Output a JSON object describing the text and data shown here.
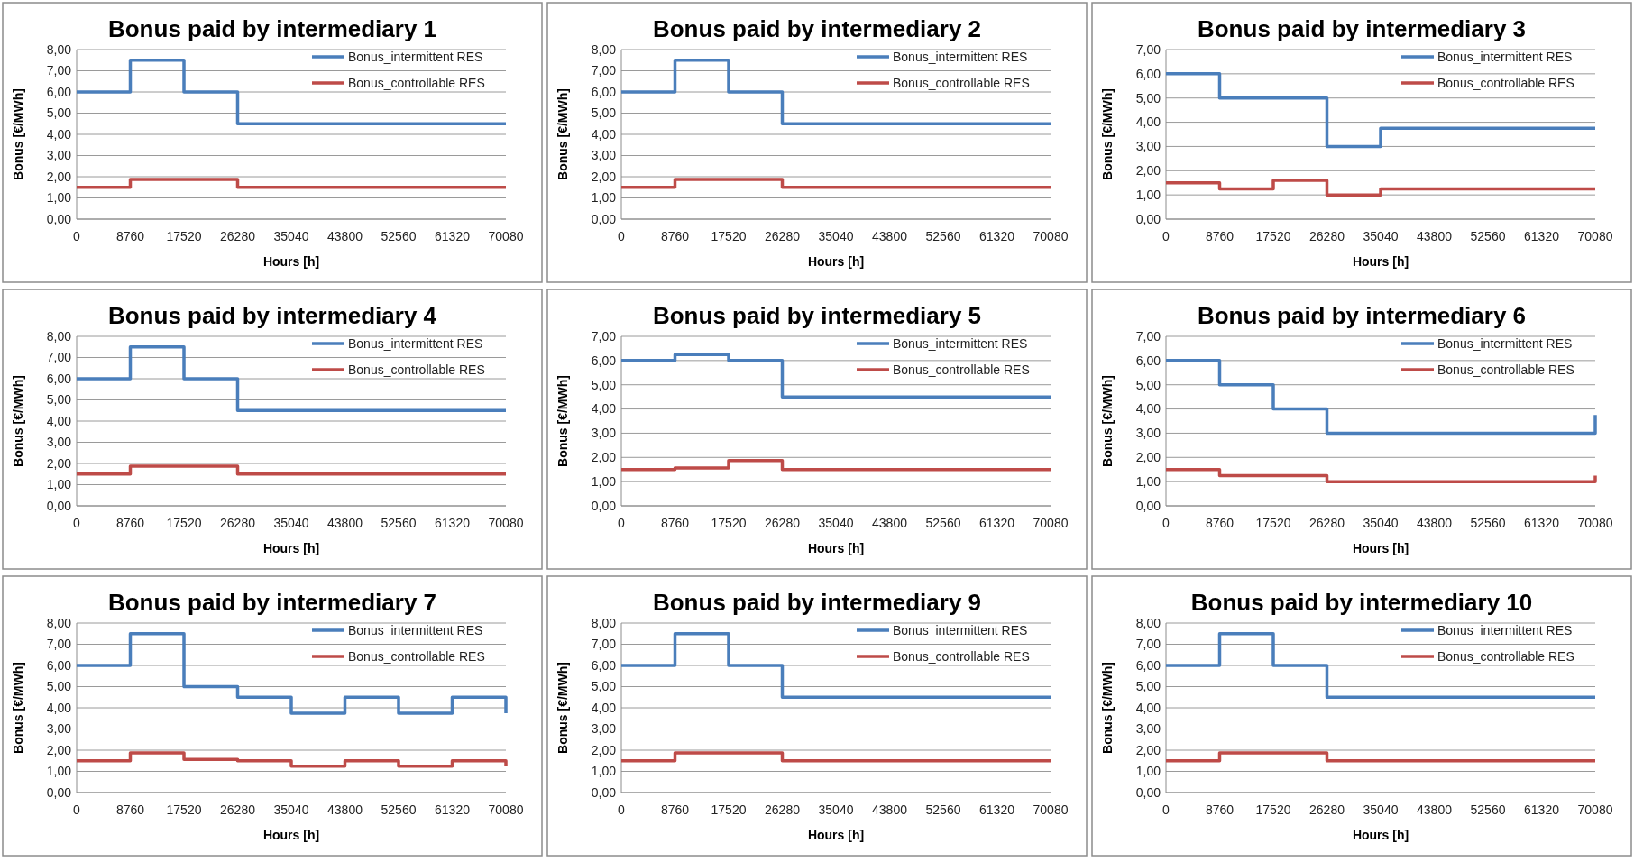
{
  "chart_data": [
    {
      "type": "step",
      "title": "Bonus paid by intermediary 1",
      "xlabel": "Hours [h]",
      "ylabel": "Bonus [€/MWh]",
      "x": [
        0,
        8760,
        17520,
        26280,
        35040,
        43800,
        52560,
        61320,
        70080
      ],
      "xlim": [
        0,
        70080
      ],
      "xticks": [
        0,
        8760,
        17520,
        26280,
        35040,
        43800,
        52560,
        61320,
        70080
      ],
      "ylim": [
        0,
        8
      ],
      "yticks": [
        {
          "value": 0,
          "label": "0,00"
        },
        {
          "value": 1,
          "label": "1,00"
        },
        {
          "value": 2,
          "label": "2,00"
        },
        {
          "value": 3,
          "label": "3,00"
        },
        {
          "value": 4,
          "label": "4,00"
        },
        {
          "value": 5,
          "label": "5,00"
        },
        {
          "value": 6,
          "label": "6,00"
        },
        {
          "value": 7,
          "label": "7,00"
        },
        {
          "value": 8,
          "label": "8,00"
        }
      ],
      "grid": "y",
      "legend": "top right",
      "series": [
        {
          "name": "Bonus_intermittent RES",
          "color": "#4a7ebb",
          "values": [
            6,
            7.5,
            6,
            4.5,
            4.5,
            4.5,
            4.5,
            4.5,
            4.5
          ]
        },
        {
          "name": "Bonus_controllable RES",
          "color": "#be4b48",
          "values": [
            1.5,
            1.875,
            1.875,
            1.5,
            1.5,
            1.5,
            1.5,
            1.5,
            1.5
          ]
        }
      ]
    },
    {
      "type": "step",
      "title": "Bonus paid by intermediary 2",
      "xlabel": "Hours [h]",
      "ylabel": "Bonus [€/MWh]",
      "x": [
        0,
        8760,
        17520,
        26280,
        35040,
        43800,
        52560,
        61320,
        70080
      ],
      "xlim": [
        0,
        70080
      ],
      "xticks": [
        0,
        8760,
        17520,
        26280,
        35040,
        43800,
        52560,
        61320,
        70080
      ],
      "ylim": [
        0,
        8
      ],
      "yticks": [
        {
          "value": 0,
          "label": "0,00"
        },
        {
          "value": 1,
          "label": "1,00"
        },
        {
          "value": 2,
          "label": "2,00"
        },
        {
          "value": 3,
          "label": "3,00"
        },
        {
          "value": 4,
          "label": "4,00"
        },
        {
          "value": 5,
          "label": "5,00"
        },
        {
          "value": 6,
          "label": "6,00"
        },
        {
          "value": 7,
          "label": "7,00"
        },
        {
          "value": 8,
          "label": "8,00"
        }
      ],
      "grid": "y",
      "legend": "top right",
      "series": [
        {
          "name": "Bonus_intermittent RES",
          "color": "#4a7ebb",
          "values": [
            6,
            7.5,
            6,
            4.5,
            4.5,
            4.5,
            4.5,
            4.5,
            4.5
          ]
        },
        {
          "name": "Bonus_controllable RES",
          "color": "#be4b48",
          "values": [
            1.5,
            1.875,
            1.875,
            1.5,
            1.5,
            1.5,
            1.5,
            1.5,
            1.5
          ]
        }
      ]
    },
    {
      "type": "step",
      "title": "Bonus paid by intermediary 3",
      "xlabel": "Hours [h]",
      "ylabel": "Bonus [€/MWh]",
      "x": [
        0,
        8760,
        17520,
        26280,
        35040,
        43800,
        52560,
        61320,
        70080
      ],
      "xlim": [
        0,
        70080
      ],
      "xticks": [
        0,
        8760,
        17520,
        26280,
        35040,
        43800,
        52560,
        61320,
        70080
      ],
      "ylim": [
        0,
        7
      ],
      "yticks": [
        {
          "value": 0,
          "label": "0,00"
        },
        {
          "value": 1,
          "label": "1,00"
        },
        {
          "value": 2,
          "label": "2,00"
        },
        {
          "value": 3,
          "label": "3,00"
        },
        {
          "value": 4,
          "label": "4,00"
        },
        {
          "value": 5,
          "label": "5,00"
        },
        {
          "value": 6,
          "label": "6,00"
        },
        {
          "value": 7,
          "label": "7,00"
        }
      ],
      "grid": "y",
      "legend": "top right",
      "series": [
        {
          "name": "Bonus_intermittent RES",
          "color": "#4a7ebb",
          "values": [
            6,
            5,
            5,
            3,
            3.75,
            3.75,
            3.75,
            3.75,
            3.75
          ]
        },
        {
          "name": "Bonus_controllable RES",
          "color": "#be4b48",
          "values": [
            1.5,
            1.25,
            1.6,
            1,
            1.25,
            1.25,
            1.25,
            1.25,
            1.25
          ]
        }
      ]
    },
    {
      "type": "step",
      "title": "Bonus paid by intermediary 4",
      "xlabel": "Hours [h]",
      "ylabel": "Bonus [€/MWh]",
      "x": [
        0,
        8760,
        17520,
        26280,
        35040,
        43800,
        52560,
        61320,
        70080
      ],
      "xlim": [
        0,
        70080
      ],
      "xticks": [
        0,
        8760,
        17520,
        26280,
        35040,
        43800,
        52560,
        61320,
        70080
      ],
      "ylim": [
        0,
        8
      ],
      "yticks": [
        {
          "value": 0,
          "label": "0,00"
        },
        {
          "value": 1,
          "label": "1,00"
        },
        {
          "value": 2,
          "label": "2,00"
        },
        {
          "value": 3,
          "label": "3,00"
        },
        {
          "value": 4,
          "label": "4,00"
        },
        {
          "value": 5,
          "label": "5,00"
        },
        {
          "value": 6,
          "label": "6,00"
        },
        {
          "value": 7,
          "label": "7,00"
        },
        {
          "value": 8,
          "label": "8,00"
        }
      ],
      "grid": "y",
      "legend": "top right",
      "series": [
        {
          "name": "Bonus_intermittent RES",
          "color": "#4a7ebb",
          "values": [
            6,
            7.5,
            6,
            4.5,
            4.5,
            4.5,
            4.5,
            4.5,
            4.5
          ]
        },
        {
          "name": "Bonus_controllable RES",
          "color": "#be4b48",
          "values": [
            1.5,
            1.875,
            1.875,
            1.5,
            1.5,
            1.5,
            1.5,
            1.5,
            1.5
          ]
        }
      ]
    },
    {
      "type": "step",
      "title": "Bonus paid by intermediary 5",
      "xlabel": "Hours [h]",
      "ylabel": "Bonus [€/MWh]",
      "x": [
        0,
        8760,
        17520,
        26280,
        35040,
        43800,
        52560,
        61320,
        70080
      ],
      "xlim": [
        0,
        70080
      ],
      "xticks": [
        0,
        8760,
        17520,
        26280,
        35040,
        43800,
        52560,
        61320,
        70080
      ],
      "ylim": [
        0,
        7
      ],
      "yticks": [
        {
          "value": 0,
          "label": "0,00"
        },
        {
          "value": 1,
          "label": "1,00"
        },
        {
          "value": 2,
          "label": "2,00"
        },
        {
          "value": 3,
          "label": "3,00"
        },
        {
          "value": 4,
          "label": "4,00"
        },
        {
          "value": 5,
          "label": "5,00"
        },
        {
          "value": 6,
          "label": "6,00"
        },
        {
          "value": 7,
          "label": "7,00"
        }
      ],
      "grid": "y",
      "legend": "top right",
      "series": [
        {
          "name": "Bonus_intermittent RES",
          "color": "#4a7ebb",
          "values": [
            6,
            6.25,
            6,
            4.5,
            4.5,
            4.5,
            4.5,
            4.5,
            4.5
          ]
        },
        {
          "name": "Bonus_controllable RES",
          "color": "#be4b48",
          "values": [
            1.5,
            1.56,
            1.875,
            1.5,
            1.5,
            1.5,
            1.5,
            1.5,
            1.5
          ]
        }
      ]
    },
    {
      "type": "step",
      "title": "Bonus paid by intermediary 6",
      "xlabel": "Hours [h]",
      "ylabel": "Bonus [€/MWh]",
      "x": [
        0,
        8760,
        17520,
        26280,
        35040,
        43800,
        52560,
        61320,
        70080
      ],
      "xlim": [
        0,
        70080
      ],
      "xticks": [
        0,
        8760,
        17520,
        26280,
        35040,
        43800,
        52560,
        61320,
        70080
      ],
      "ylim": [
        0,
        7
      ],
      "yticks": [
        {
          "value": 0,
          "label": "0,00"
        },
        {
          "value": 1,
          "label": "1,00"
        },
        {
          "value": 2,
          "label": "2,00"
        },
        {
          "value": 3,
          "label": "3,00"
        },
        {
          "value": 4,
          "label": "4,00"
        },
        {
          "value": 5,
          "label": "5,00"
        },
        {
          "value": 6,
          "label": "6,00"
        },
        {
          "value": 7,
          "label": "7,00"
        }
      ],
      "grid": "y",
      "legend": "top right",
      "series": [
        {
          "name": "Bonus_intermittent RES",
          "color": "#4a7ebb",
          "values": [
            6,
            5,
            4,
            3,
            3,
            3,
            3,
            3,
            3.75
          ]
        },
        {
          "name": "Bonus_controllable RES",
          "color": "#be4b48",
          "values": [
            1.5,
            1.25,
            1.25,
            1,
            1,
            1,
            1,
            1,
            1.25
          ]
        }
      ]
    },
    {
      "type": "step",
      "title": "Bonus paid by intermediary 7",
      "xlabel": "Hours [h]",
      "ylabel": "Bonus [€/MWh]",
      "x": [
        0,
        8760,
        17520,
        26280,
        35040,
        43800,
        52560,
        61320,
        70080
      ],
      "xlim": [
        0,
        70080
      ],
      "xticks": [
        0,
        8760,
        17520,
        26280,
        35040,
        43800,
        52560,
        61320,
        70080
      ],
      "ylim": [
        0,
        8
      ],
      "yticks": [
        {
          "value": 0,
          "label": "0,00"
        },
        {
          "value": 1,
          "label": "1,00"
        },
        {
          "value": 2,
          "label": "2,00"
        },
        {
          "value": 3,
          "label": "3,00"
        },
        {
          "value": 4,
          "label": "4,00"
        },
        {
          "value": 5,
          "label": "5,00"
        },
        {
          "value": 6,
          "label": "6,00"
        },
        {
          "value": 7,
          "label": "7,00"
        },
        {
          "value": 8,
          "label": "8,00"
        }
      ],
      "grid": "y",
      "legend": "top right",
      "series": [
        {
          "name": "Bonus_intermittent RES",
          "color": "#4a7ebb",
          "values": [
            6,
            7.5,
            5,
            4.5,
            3.75,
            4.5,
            3.75,
            4.5,
            3.75
          ]
        },
        {
          "name": "Bonus_controllable RES",
          "color": "#be4b48",
          "values": [
            1.5,
            1.875,
            1.56,
            1.5,
            1.25,
            1.5,
            1.25,
            1.5,
            1.25
          ]
        }
      ]
    },
    {
      "type": "step",
      "title": "Bonus paid by intermediary 9",
      "xlabel": "Hours [h]",
      "ylabel": "Bonus [€/MWh]",
      "x": [
        0,
        8760,
        17520,
        26280,
        35040,
        43800,
        52560,
        61320,
        70080
      ],
      "xlim": [
        0,
        70080
      ],
      "xticks": [
        0,
        8760,
        17520,
        26280,
        35040,
        43800,
        52560,
        61320,
        70080
      ],
      "ylim": [
        0,
        8
      ],
      "yticks": [
        {
          "value": 0,
          "label": "0,00"
        },
        {
          "value": 1,
          "label": "1,00"
        },
        {
          "value": 2,
          "label": "2,00"
        },
        {
          "value": 3,
          "label": "3,00"
        },
        {
          "value": 4,
          "label": "4,00"
        },
        {
          "value": 5,
          "label": "5,00"
        },
        {
          "value": 6,
          "label": "6,00"
        },
        {
          "value": 7,
          "label": "7,00"
        },
        {
          "value": 8,
          "label": "8,00"
        }
      ],
      "grid": "y",
      "legend": "top right",
      "series": [
        {
          "name": "Bonus_intermittent RES",
          "color": "#4a7ebb",
          "values": [
            6,
            7.5,
            6,
            4.5,
            4.5,
            4.5,
            4.5,
            4.5,
            4.5
          ]
        },
        {
          "name": "Bonus_controllable RES",
          "color": "#be4b48",
          "values": [
            1.5,
            1.875,
            1.875,
            1.5,
            1.5,
            1.5,
            1.5,
            1.5,
            1.5
          ]
        }
      ]
    },
    {
      "type": "step",
      "title": "Bonus paid by intermediary 10",
      "xlabel": "Hours [h]",
      "ylabel": "Bonus [€/MWh]",
      "x": [
        0,
        8760,
        17520,
        26280,
        35040,
        43800,
        52560,
        61320,
        70080
      ],
      "xlim": [
        0,
        70080
      ],
      "xticks": [
        0,
        8760,
        17520,
        26280,
        35040,
        43800,
        52560,
        61320,
        70080
      ],
      "ylim": [
        0,
        8
      ],
      "yticks": [
        {
          "value": 0,
          "label": "0,00"
        },
        {
          "value": 1,
          "label": "1,00"
        },
        {
          "value": 2,
          "label": "2,00"
        },
        {
          "value": 3,
          "label": "3,00"
        },
        {
          "value": 4,
          "label": "4,00"
        },
        {
          "value": 5,
          "label": "5,00"
        },
        {
          "value": 6,
          "label": "6,00"
        },
        {
          "value": 7,
          "label": "7,00"
        },
        {
          "value": 8,
          "label": "8,00"
        }
      ],
      "grid": "y",
      "legend": "top right",
      "series": [
        {
          "name": "Bonus_intermittent RES",
          "color": "#4a7ebb",
          "values": [
            6,
            7.5,
            6,
            4.5,
            4.5,
            4.5,
            4.5,
            4.5,
            4.5
          ]
        },
        {
          "name": "Bonus_controllable RES",
          "color": "#be4b48",
          "values": [
            1.5,
            1.875,
            1.875,
            1.5,
            1.5,
            1.5,
            1.5,
            1.5,
            1.5
          ]
        }
      ]
    }
  ]
}
